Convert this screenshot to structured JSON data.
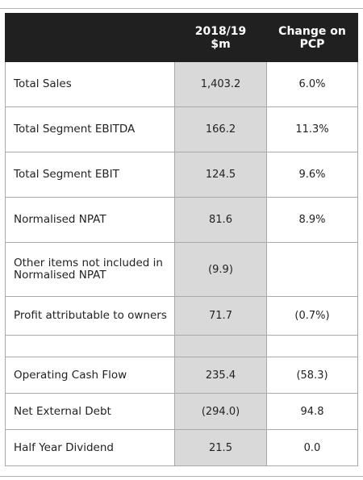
{
  "table": {
    "headers": [
      "",
      "2018/19\n$m",
      "Change on\nPCP"
    ],
    "rows": [
      {
        "label": "Total Sales",
        "value": "1,403.2",
        "change": "6.0%"
      },
      {
        "label": "Total Segment EBITDA",
        "value": "166.2",
        "change": "11.3%"
      },
      {
        "label": "Total Segment EBIT",
        "value": "124.5",
        "change": "9.6%"
      },
      {
        "label": "Normalised NPAT",
        "value": "81.6",
        "change": "8.9%"
      },
      {
        "label": "Other items not included in Normalised NPAT",
        "value": "(9.9)",
        "change": ""
      },
      {
        "label": "Profit attributable to owners",
        "value": "71.7",
        "change": "(0.7%)"
      },
      {
        "label": "",
        "value": "",
        "change": ""
      },
      {
        "label": "Operating Cash Flow",
        "value": "235.4",
        "change": "(58.3)"
      },
      {
        "label": "Net External Debt",
        "value": "(294.0)",
        "change": "94.8"
      },
      {
        "label": "Half Year Dividend",
        "value": "21.5",
        "change": "0.0"
      }
    ]
  },
  "colors": {
    "header_background": "#202020",
    "header_text": "#ffffff",
    "value_column_shade": "#d9d9d9",
    "grid_lines": "#a9a9a9"
  }
}
